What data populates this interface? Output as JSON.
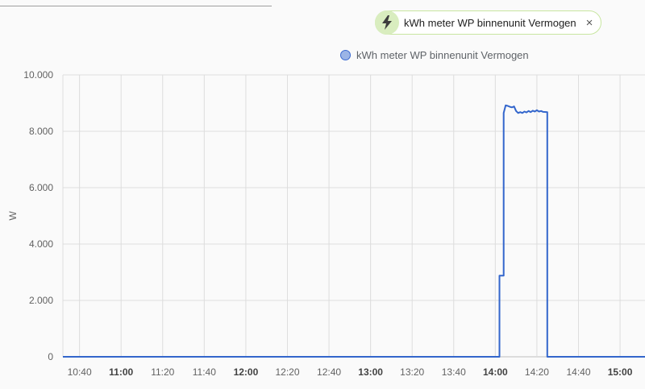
{
  "filter_chip": {
    "icon": "lightning-bolt-icon",
    "label": "kWh meter WP binnenunit Vermogen",
    "close_glyph": "×"
  },
  "colors": {
    "series": "#3366cc",
    "chip_icon_bg": "#d9edbf",
    "grid": "#dddddd"
  },
  "chart_data": {
    "type": "line",
    "ylabel": "W",
    "ylim": [
      0,
      10000
    ],
    "y_ticks": [
      {
        "value": 10000,
        "label": "10.000"
      },
      {
        "value": 8000,
        "label": "8.000"
      },
      {
        "value": 6000,
        "label": "6.000"
      },
      {
        "value": 4000,
        "label": "4.000"
      },
      {
        "value": 2000,
        "label": "2.000"
      },
      {
        "value": 0,
        "label": "0"
      }
    ],
    "xlim": [
      "10:32",
      "15:12"
    ],
    "x_ticks": [
      {
        "value": "10:40",
        "label": "10:40",
        "major": false
      },
      {
        "value": "11:00",
        "label": "11:00",
        "major": true
      },
      {
        "value": "11:20",
        "label": "11:20",
        "major": false
      },
      {
        "value": "11:40",
        "label": "11:40",
        "major": false
      },
      {
        "value": "12:00",
        "label": "12:00",
        "major": true
      },
      {
        "value": "12:20",
        "label": "12:20",
        "major": false
      },
      {
        "value": "12:40",
        "label": "12:40",
        "major": false
      },
      {
        "value": "13:00",
        "label": "13:00",
        "major": true
      },
      {
        "value": "13:20",
        "label": "13:20",
        "major": false
      },
      {
        "value": "13:40",
        "label": "13:40",
        "major": false
      },
      {
        "value": "14:00",
        "label": "14:00",
        "major": true
      },
      {
        "value": "14:20",
        "label": "14:20",
        "major": false
      },
      {
        "value": "14:40",
        "label": "14:40",
        "major": false
      },
      {
        "value": "15:00",
        "label": "15:00",
        "major": true
      }
    ],
    "grid": true,
    "legend": "top-center",
    "series": [
      {
        "name": "kWh meter WP binnenunit Vermogen",
        "step": true,
        "points": [
          [
            "10:32",
            0
          ],
          [
            "14:02",
            0
          ],
          [
            "14:02",
            2880
          ],
          [
            "14:04",
            2880
          ],
          [
            "14:04",
            8650
          ],
          [
            "14:05",
            8920
          ],
          [
            "14:06",
            8900
          ],
          [
            "14:07",
            8870
          ],
          [
            "14:08",
            8850
          ],
          [
            "14:09",
            8880
          ],
          [
            "14:10",
            8720
          ],
          [
            "14:11",
            8650
          ],
          [
            "14:12",
            8680
          ],
          [
            "14:13",
            8650
          ],
          [
            "14:14",
            8700
          ],
          [
            "14:15",
            8670
          ],
          [
            "14:16",
            8720
          ],
          [
            "14:17",
            8680
          ],
          [
            "14:18",
            8730
          ],
          [
            "14:19",
            8700
          ],
          [
            "14:20",
            8750
          ],
          [
            "14:21",
            8700
          ],
          [
            "14:22",
            8720
          ],
          [
            "14:23",
            8690
          ],
          [
            "14:25",
            8680
          ],
          [
            "14:25",
            0
          ],
          [
            "15:12",
            0
          ]
        ]
      }
    ]
  }
}
